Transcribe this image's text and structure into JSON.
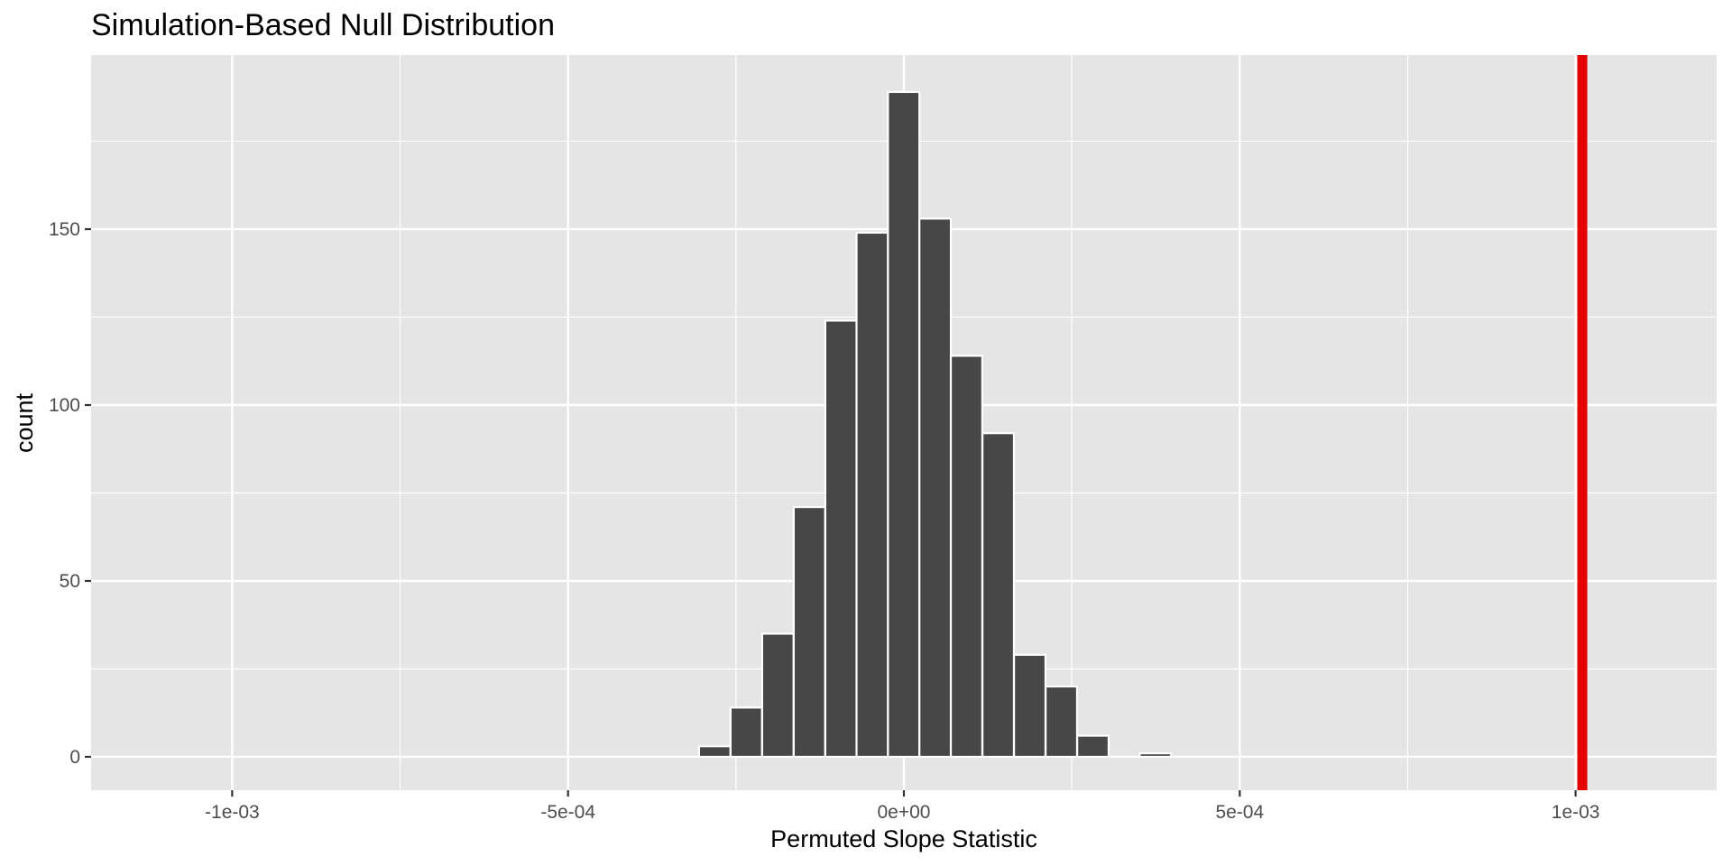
{
  "chart_data": {
    "type": "bar",
    "title": "Simulation-Based Null Distribution",
    "xlabel": "Permuted Slope Statistic",
    "ylabel": "count",
    "xlim": [
      -0.00121,
      0.00121
    ],
    "ylim": [
      -9.5,
      199.5
    ],
    "x_ticks": [
      {
        "value": -0.001,
        "label": "-1e-03"
      },
      {
        "value": -0.0005,
        "label": "-5e-04"
      },
      {
        "value": 0,
        "label": "0e+00"
      },
      {
        "value": 0.0005,
        "label": "5e-04"
      },
      {
        "value": 0.001,
        "label": "1e-03"
      }
    ],
    "x_minor_ticks": [
      -0.00075,
      -0.00025,
      0.00025,
      0.00075
    ],
    "y_ticks": [
      {
        "value": 0,
        "label": "0"
      },
      {
        "value": 50,
        "label": "50"
      },
      {
        "value": 100,
        "label": "100"
      },
      {
        "value": 150,
        "label": "150"
      }
    ],
    "y_minor_ticks": [
      25,
      75,
      125,
      175
    ],
    "bin_width": 4.68e-05,
    "bins": [
      {
        "x_left": -0.000305,
        "count": 3
      },
      {
        "x_left": -0.000258,
        "count": 14
      },
      {
        "x_left": -0.000211,
        "count": 35
      },
      {
        "x_left": -0.000164,
        "count": 71
      },
      {
        "x_left": -0.000117,
        "count": 124
      },
      {
        "x_left": -7.05e-05,
        "count": 149
      },
      {
        "x_left": -2.37e-05,
        "count": 189
      },
      {
        "x_left": 2.31e-05,
        "count": 153
      },
      {
        "x_left": 6.99e-05,
        "count": 114
      },
      {
        "x_left": 0.000117,
        "count": 92
      },
      {
        "x_left": 0.000164,
        "count": 29
      },
      {
        "x_left": 0.000211,
        "count": 20
      },
      {
        "x_left": 0.000258,
        "count": 6
      },
      {
        "x_left": 0.000304,
        "count": 0
      },
      {
        "x_left": 0.000351,
        "count": 1
      }
    ],
    "observed_statistic": 0.00101,
    "colors": {
      "bar_fill": "#474747",
      "bar_outline": "#ffffff",
      "panel_background": "#e5e5e5",
      "grid": "#ffffff",
      "observed_line": "#e50000"
    },
    "grid": true,
    "legend": "none"
  }
}
